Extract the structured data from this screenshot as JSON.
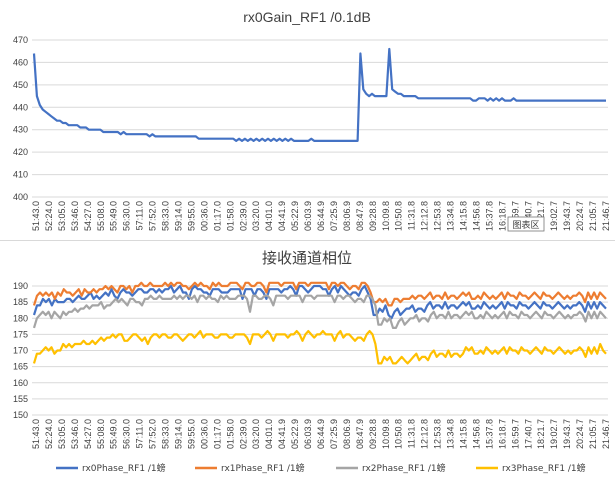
{
  "chart_data": [
    {
      "type": "line",
      "title": "rx0Gain_RF1 /0.1dB",
      "ylim": [
        400,
        470
      ],
      "yticks": [
        400,
        410,
        420,
        430,
        440,
        450,
        460,
        470
      ],
      "grid": true,
      "x_ticks": [
        "51:43.0",
        "52:24.0",
        "53:05.0",
        "53:46.0",
        "54:27.0",
        "55:08.0",
        "55:49.0",
        "56:30.0",
        "57:11.0",
        "57:52.0",
        "58:33.0",
        "59:14.0",
        "59:55.0",
        "00:36.0",
        "01:17.0",
        "01:58.0",
        "02:39.0",
        "03:20.0",
        "04:01.0",
        "04:41.9",
        "05:22.9",
        "06:03.9",
        "06:44.9",
        "07:25.9",
        "08:06.9",
        "08:47.9",
        "09:28.8",
        "10:09.8",
        "10:50.8",
        "11:31.8",
        "12:12.8",
        "12:53.8",
        "13:34.8",
        "14:15.8",
        "14:56.8",
        "15:37.8",
        "16:18.7",
        "16:59.7",
        "17:40.7",
        "18:21.7",
        "19:02.7",
        "19:43.7",
        "20:24.7",
        "21:05.7",
        "21:46.7"
      ],
      "plot_area_tooltip": "图表区",
      "series": [
        {
          "color": "#4472c4",
          "values": [
            464,
            445,
            441,
            439,
            438,
            437,
            436,
            435,
            434,
            434,
            433,
            433,
            432,
            432,
            432,
            432,
            431,
            431,
            431,
            430,
            430,
            430,
            430,
            430,
            429,
            429,
            429,
            429,
            429,
            429,
            428,
            429,
            428,
            428,
            428,
            428,
            428,
            428,
            428,
            428,
            427,
            428,
            427,
            427,
            427,
            427,
            427,
            427,
            427,
            427,
            427,
            427,
            427,
            427,
            427,
            427,
            427,
            426,
            426,
            426,
            426,
            426,
            426,
            426,
            426,
            426,
            426,
            426,
            426,
            426,
            425,
            426,
            425,
            426,
            425,
            426,
            425,
            426,
            425,
            426,
            425,
            426,
            425,
            426,
            425,
            426,
            425,
            426,
            425,
            426,
            425,
            425,
            425,
            425,
            425,
            425,
            426,
            425,
            425,
            425,
            425,
            425,
            425,
            425,
            425,
            425,
            425,
            425,
            425,
            425,
            425,
            425,
            425,
            464,
            448,
            446,
            445,
            446,
            445,
            445,
            445,
            445,
            445,
            466,
            448,
            447,
            446,
            446,
            445,
            445,
            445,
            445,
            445,
            444,
            444,
            444,
            444,
            444,
            444,
            444,
            444,
            444,
            444,
            444,
            444,
            444,
            444,
            444,
            444,
            444,
            444,
            444,
            443,
            443,
            444,
            444,
            444,
            443,
            444,
            443,
            444,
            443,
            444,
            443,
            443,
            443,
            444,
            443,
            443,
            443,
            443,
            443,
            443,
            443,
            443,
            443,
            443,
            443,
            443,
            443,
            443,
            443,
            443,
            443,
            443,
            443,
            443,
            443,
            443,
            443,
            443,
            443,
            443,
            443,
            443,
            443,
            443,
            443,
            443
          ]
        }
      ]
    },
    {
      "type": "line",
      "title": "接收通道相位",
      "ylim": [
        150,
        190
      ],
      "yticks": [
        150,
        155,
        160,
        165,
        170,
        175,
        180,
        185,
        190
      ],
      "grid": true,
      "x_ticks": [
        "51:43.0",
        "52:24.0",
        "53:05.0",
        "53:46.0",
        "54:27.0",
        "55:08.0",
        "55:49.0",
        "56:30.0",
        "57:11.0",
        "57:52.0",
        "58:33.0",
        "59:14.0",
        "59:55.0",
        "00:36.0",
        "01:17.0",
        "01:58.0",
        "02:39.0",
        "03:20.0",
        "04:01.0",
        "04:41.9",
        "05:22.9",
        "06:03.9",
        "06:44.9",
        "07:25.9",
        "08:06.9",
        "08:47.9",
        "09:28.8",
        "10:09.8",
        "10:50.8",
        "11:31.8",
        "12:12.8",
        "12:53.8",
        "13:34.8",
        "14:15.8",
        "14:56.8",
        "15:37.8",
        "16:18.7",
        "16:59.7",
        "17:40.7",
        "18:21.7",
        "19:02.7",
        "19:43.7",
        "20:24.7",
        "21:05.7",
        "21:46.7"
      ],
      "legend_position": "bottom",
      "series": [
        {
          "name": "rx0Phase_RF1 /1螃",
          "color": "#4472c4",
          "values": [
            181,
            184,
            184,
            186,
            185,
            186,
            184,
            186,
            185,
            185,
            185,
            186,
            186,
            185,
            186,
            187,
            186,
            186,
            187,
            188,
            186,
            187,
            186,
            187,
            188,
            187,
            189,
            187,
            186,
            188,
            189,
            188,
            188,
            187,
            188,
            189,
            189,
            188,
            188,
            189,
            189,
            188,
            189,
            188,
            189,
            189,
            190,
            188,
            189,
            190,
            188,
            188,
            186,
            189,
            190,
            189,
            189,
            188,
            188,
            187,
            189,
            189,
            189,
            188,
            188,
            188,
            189,
            189,
            189,
            189,
            186,
            189,
            189,
            189,
            187,
            189,
            189,
            188,
            186,
            189,
            189,
            189,
            189,
            188,
            189,
            189,
            190,
            189,
            187,
            190,
            190,
            189,
            188,
            189,
            190,
            190,
            190,
            189,
            189,
            187,
            189,
            190,
            188,
            190,
            189,
            188,
            187,
            188,
            188,
            187,
            189,
            190,
            188,
            186,
            181,
            181,
            183,
            182,
            184,
            181,
            180,
            182,
            183,
            181,
            182,
            183,
            183,
            184,
            182,
            183,
            183,
            182,
            184,
            185,
            183,
            184,
            184,
            183,
            185,
            183,
            184,
            184,
            183,
            184,
            185,
            184,
            185,
            183,
            183,
            184,
            183,
            185,
            184,
            183,
            184,
            183,
            184,
            185,
            183,
            185,
            184,
            184,
            183,
            185,
            184,
            184,
            183,
            184,
            185,
            184,
            183,
            185,
            184,
            184,
            183,
            184,
            185,
            184,
            183,
            184,
            183,
            184,
            184,
            185,
            184,
            182,
            185,
            183,
            185,
            183,
            185,
            184,
            183
          ]
        },
        {
          "name": "rx1Phase_RF1 /1螃",
          "color": "#ed7d31",
          "values": [
            184,
            187,
            188,
            187,
            188,
            187,
            188,
            186,
            188,
            187,
            189,
            188,
            188,
            187,
            188,
            189,
            187,
            189,
            188,
            188,
            189,
            188,
            189,
            189,
            190,
            189,
            190,
            189,
            188,
            190,
            190,
            189,
            190,
            188,
            190,
            190,
            191,
            190,
            190,
            191,
            190,
            190,
            190,
            190,
            191,
            190,
            191,
            190,
            191,
            191,
            190,
            190,
            189,
            190,
            191,
            190,
            191,
            190,
            190,
            189,
            191,
            190,
            191,
            190,
            190,
            190,
            191,
            191,
            191,
            190,
            189,
            191,
            191,
            190,
            190,
            191,
            191,
            190,
            188,
            191,
            191,
            191,
            191,
            190,
            191,
            191,
            191,
            191,
            189,
            191,
            191,
            191,
            190,
            191,
            191,
            191,
            191,
            191,
            191,
            189,
            191,
            191,
            190,
            191,
            191,
            190,
            189,
            190,
            190,
            189,
            191,
            191,
            190,
            188,
            185,
            185,
            186,
            185,
            186,
            184,
            184,
            186,
            186,
            185,
            186,
            186,
            186,
            187,
            186,
            187,
            187,
            186,
            187,
            188,
            186,
            187,
            187,
            186,
            188,
            186,
            187,
            187,
            186,
            187,
            188,
            187,
            188,
            186,
            186,
            187,
            186,
            188,
            187,
            186,
            187,
            186,
            187,
            188,
            186,
            188,
            187,
            187,
            186,
            188,
            187,
            187,
            186,
            187,
            188,
            187,
            186,
            188,
            187,
            187,
            186,
            187,
            188,
            187,
            186,
            187,
            186,
            187,
            187,
            188,
            187,
            185,
            188,
            186,
            188,
            186,
            188,
            187,
            186
          ]
        },
        {
          "name": "rx2Phase_RF1 /1螃",
          "color": "#a5a5a5",
          "values": [
            177,
            180,
            181,
            182,
            181,
            182,
            180,
            182,
            181,
            180,
            182,
            181,
            182,
            182,
            183,
            182,
            183,
            183,
            184,
            183,
            184,
            184,
            184,
            185,
            183,
            184,
            184,
            185,
            186,
            185,
            186,
            185,
            184,
            186,
            186,
            185,
            185,
            184,
            186,
            186,
            187,
            186,
            186,
            187,
            186,
            186,
            186,
            186,
            187,
            186,
            187,
            186,
            187,
            187,
            186,
            187,
            185,
            187,
            187,
            186,
            187,
            186,
            186,
            185,
            187,
            186,
            187,
            186,
            186,
            186,
            187,
            187,
            187,
            186,
            182,
            187,
            187,
            186,
            186,
            187,
            187,
            186,
            184,
            187,
            187,
            187,
            187,
            186,
            187,
            187,
            187,
            187,
            185,
            187,
            187,
            187,
            186,
            187,
            187,
            187,
            187,
            187,
            187,
            185,
            187,
            187,
            186,
            187,
            187,
            186,
            185,
            186,
            186,
            185,
            187,
            187,
            186,
            184,
            178,
            178,
            180,
            179,
            180,
            177,
            177,
            179,
            180,
            178,
            179,
            180,
            180,
            181,
            179,
            180,
            180,
            179,
            181,
            182,
            180,
            181,
            181,
            180,
            182,
            180,
            181,
            181,
            180,
            181,
            182,
            181,
            182,
            180,
            180,
            181,
            180,
            182,
            181,
            180,
            181,
            180,
            181,
            182,
            180,
            182,
            181,
            181,
            180,
            182,
            181,
            181,
            180,
            181,
            182,
            181,
            180,
            182,
            181,
            181,
            180,
            181,
            182,
            181,
            180,
            181,
            180,
            181,
            181,
            182,
            181,
            179,
            182,
            180,
            182,
            180,
            182,
            181,
            180
          ]
        },
        {
          "name": "rx3Phase_RF1 /1螃",
          "color": "#ffc000",
          "values": [
            166,
            169,
            169,
            170,
            171,
            170,
            171,
            169,
            170,
            170,
            172,
            171,
            172,
            171,
            172,
            172,
            172,
            173,
            172,
            172,
            173,
            172,
            173,
            174,
            173,
            174,
            174,
            175,
            174,
            175,
            175,
            173,
            173,
            174,
            175,
            175,
            174,
            173,
            174,
            172,
            174,
            175,
            175,
            174,
            175,
            175,
            174,
            174,
            175,
            175,
            174,
            173,
            174,
            175,
            175,
            174,
            175,
            176,
            174,
            175,
            175,
            175,
            174,
            174,
            175,
            175,
            175,
            174,
            174,
            175,
            175,
            175,
            175,
            174,
            172,
            175,
            175,
            175,
            174,
            175,
            176,
            175,
            173,
            175,
            175,
            175,
            175,
            174,
            175,
            175,
            176,
            175,
            173,
            175,
            176,
            175,
            174,
            175,
            175,
            176,
            175,
            175,
            175,
            173,
            175,
            176,
            174,
            175,
            175,
            174,
            173,
            174,
            174,
            173,
            175,
            176,
            175,
            172,
            166,
            166,
            168,
            167,
            168,
            166,
            166,
            167,
            168,
            167,
            166,
            167,
            168,
            169,
            167,
            168,
            168,
            167,
            169,
            170,
            168,
            169,
            169,
            168,
            170,
            168,
            169,
            169,
            168,
            169,
            171,
            170,
            171,
            169,
            169,
            170,
            169,
            171,
            170,
            169,
            170,
            169,
            170,
            171,
            169,
            171,
            170,
            170,
            169,
            171,
            170,
            170,
            169,
            170,
            171,
            170,
            169,
            171,
            170,
            170,
            169,
            170,
            171,
            170,
            169,
            170,
            169,
            170,
            170,
            171,
            170,
            168,
            171,
            169,
            171,
            169,
            172,
            170,
            169
          ]
        }
      ]
    }
  ]
}
